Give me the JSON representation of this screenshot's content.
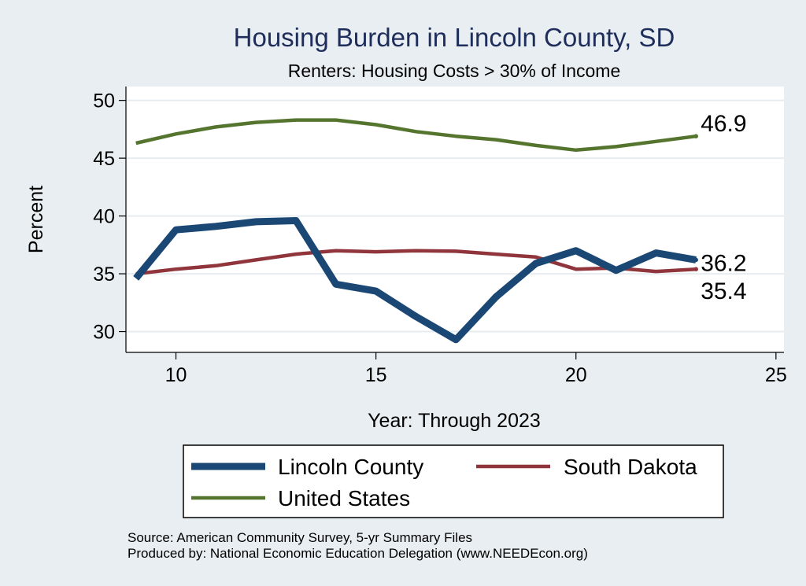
{
  "chart_data": {
    "type": "line",
    "title": "Housing Burden in Lincoln County, SD",
    "subtitle": "Renters: Housing Costs > 30% of Income",
    "xlabel": "Year: Through 2023",
    "ylabel": "Percent",
    "xlim": [
      8.75,
      25.2
    ],
    "ylim": [
      28.2,
      51.2
    ],
    "xticks": [
      10,
      15,
      20,
      25
    ],
    "yticks": [
      30,
      35,
      40,
      45,
      50
    ],
    "grid": true,
    "legend_position": "bottom",
    "series": [
      {
        "name": "Lincoln County",
        "color": "#1a4773",
        "x": [
          9,
          10,
          11,
          12,
          13,
          14,
          15,
          16,
          17,
          18,
          19,
          20,
          21,
          22,
          23
        ],
        "values": [
          34.6,
          38.8,
          39.1,
          39.5,
          39.6,
          34.1,
          33.5,
          31.3,
          29.3,
          33.0,
          35.9,
          37.0,
          35.3,
          36.8,
          36.2
        ],
        "end_label": "36.2"
      },
      {
        "name": "South Dakota",
        "color": "#90353b",
        "x": [
          9,
          10,
          11,
          12,
          13,
          14,
          15,
          16,
          17,
          18,
          19,
          20,
          21,
          22,
          23
        ],
        "values": [
          35.0,
          35.4,
          35.7,
          36.2,
          36.7,
          37.0,
          36.9,
          37.0,
          36.95,
          36.7,
          36.45,
          35.4,
          35.5,
          35.2,
          35.4
        ],
        "end_label": "35.4"
      },
      {
        "name": "United States",
        "color": "#55752f",
        "x": [
          9,
          10,
          11,
          12,
          13,
          14,
          15,
          16,
          17,
          18,
          19,
          20,
          21,
          22,
          23
        ],
        "values": [
          46.3,
          47.1,
          47.7,
          48.1,
          48.3,
          48.3,
          47.9,
          47.3,
          46.9,
          46.6,
          46.1,
          45.7,
          46.0,
          46.45,
          46.9
        ],
        "end_label": "46.9"
      }
    ],
    "legend": [
      {
        "label": "Lincoln County",
        "color": "#1a4773"
      },
      {
        "label": "South Dakota",
        "color": "#90353b"
      },
      {
        "label": "United States",
        "color": "#55752f"
      }
    ]
  },
  "notes": {
    "source": "Source: American Community Survey, 5-yr Summary Files",
    "produced_by": "Produced by: National Economic Education Delegation (www.NEEDEcon.org)"
  }
}
